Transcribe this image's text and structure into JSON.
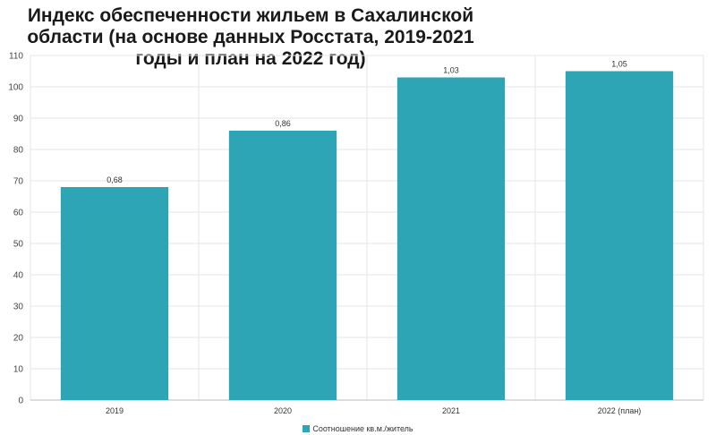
{
  "chart_data": {
    "type": "bar",
    "title_lines": [
      "Индекс обеспеченности жильем в Сахалинской",
      "области (на основе данных Росстата, 2019-2021",
      "годы и план на 2022 год)"
    ],
    "categories": [
      "2019",
      "2020",
      "2021",
      "2022 (план)"
    ],
    "series": [
      {
        "name": "Соотношение кв.м./житель",
        "values": [
          68,
          86,
          103,
          105
        ],
        "data_labels": [
          "0,68",
          "0,86",
          "1,03",
          "1,05"
        ]
      }
    ],
    "ylim": [
      0,
      110
    ],
    "yticks": [
      0,
      10,
      20,
      30,
      40,
      50,
      60,
      70,
      80,
      90,
      100,
      110
    ],
    "grid": true,
    "legend_position": "bottom",
    "bar_color": "#2ea5b5"
  }
}
